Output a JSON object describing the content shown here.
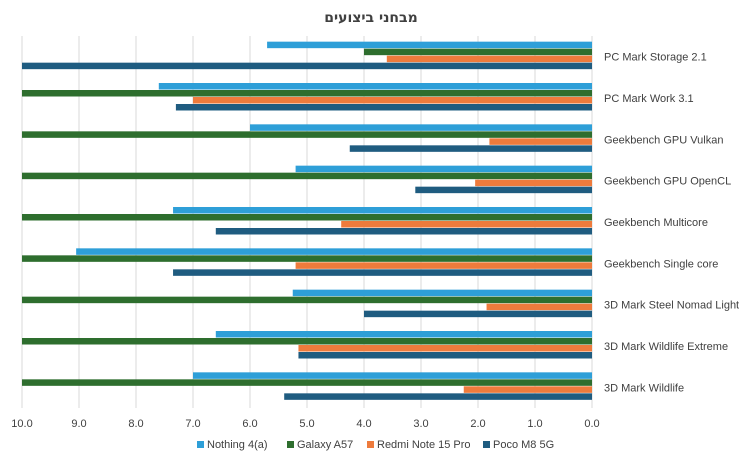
{
  "chart_data": {
    "type": "bar",
    "orientation": "horizontal",
    "title": "מבחני ביצועים",
    "x_axis_reversed": true,
    "xlim": [
      0,
      10
    ],
    "x_ticks": [
      "0.0",
      "1.0",
      "2.0",
      "3.0",
      "4.0",
      "5.0",
      "6.0",
      "7.0",
      "8.0",
      "9.0",
      "10.0"
    ],
    "grid": true,
    "legend_position": "bottom",
    "categories": [
      "PC Mark Storage 2.1",
      "PC Mark Work 3.1",
      "Geekbench GPU Vulkan",
      "Geekbench GPU OpenCL",
      "Geekbench Multicore",
      "Geekbench Single core",
      "3D Mark Steel Nomad Light",
      "3D Mark Wildlife Extreme",
      "3D Mark Wildlife"
    ],
    "series": [
      {
        "name": "Nothing 4(a)",
        "color": "#2e9fd8",
        "values": [
          5.7,
          7.6,
          6.0,
          5.2,
          7.35,
          9.05,
          5.25,
          6.6,
          7.0
        ]
      },
      {
        "name": "Galaxy A57",
        "color": "#2e6e2e",
        "values": [
          4.0,
          10.0,
          10.0,
          10.0,
          10.0,
          10.0,
          10.0,
          10.0,
          10.0
        ]
      },
      {
        "name": "Redmi Note 15 Pro",
        "color": "#ee7b3c",
        "values": [
          3.6,
          7.0,
          1.8,
          2.05,
          4.4,
          5.2,
          1.85,
          5.15,
          2.25
        ]
      },
      {
        "name": "Poco M8 5G",
        "color": "#1f5c80",
        "values": [
          10.0,
          7.3,
          4.25,
          3.1,
          6.6,
          7.35,
          4.0,
          5.15,
          5.4
        ]
      }
    ]
  }
}
